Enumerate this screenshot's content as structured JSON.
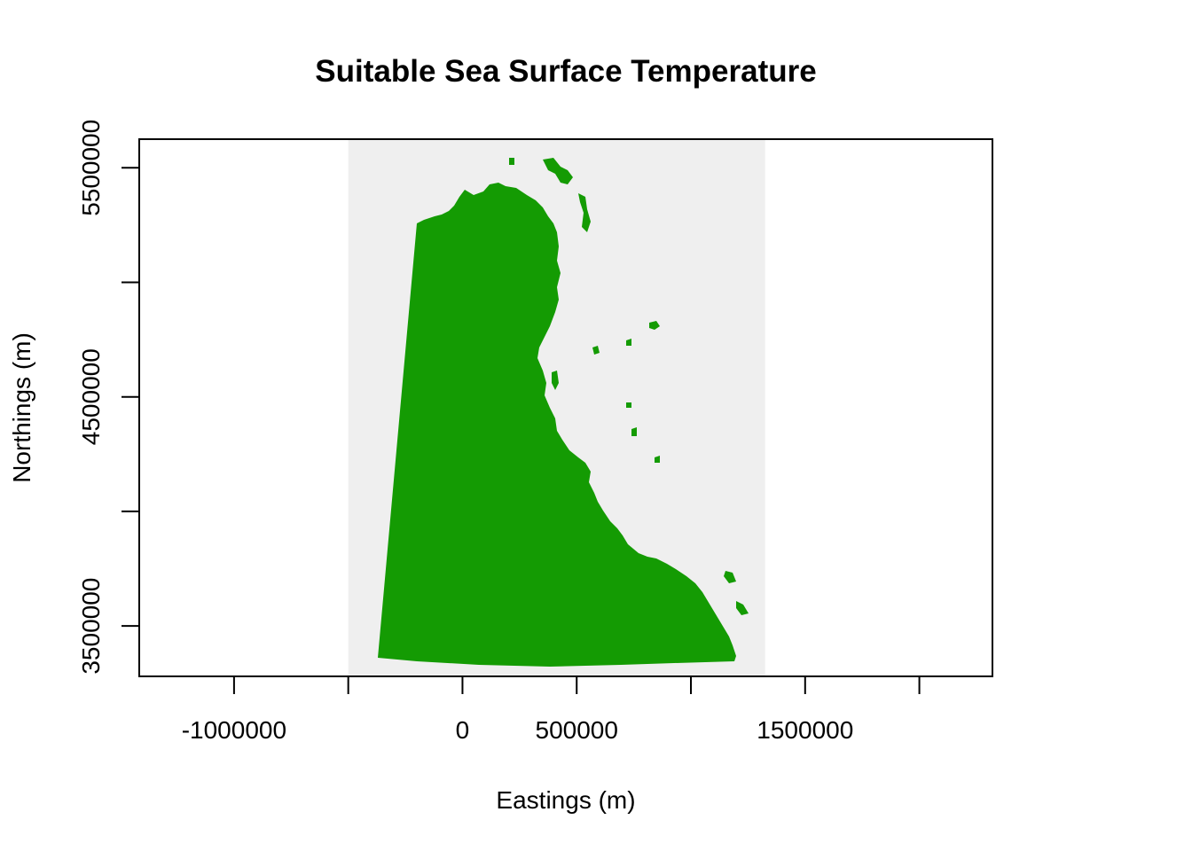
{
  "chart_data": {
    "type": "raster-map",
    "title": "Suitable Sea Surface Temperature",
    "xlabel": "Eastings (m)",
    "ylabel": "Northings (m)",
    "xlim": [
      -1415000,
      2320000
    ],
    "ylim": [
      3280000,
      5625000
    ],
    "x_ticks": [
      {
        "value": -1000000,
        "label": "-1000000"
      },
      {
        "value": -500000,
        "label": ""
      },
      {
        "value": 0,
        "label": "0"
      },
      {
        "value": 500000,
        "label": "500000"
      },
      {
        "value": 1000000,
        "label": ""
      },
      {
        "value": 1500000,
        "label": "1500000"
      },
      {
        "value": 2000000,
        "label": ""
      }
    ],
    "y_ticks": [
      {
        "value": 3500000,
        "label": "3500000"
      },
      {
        "value": 4000000,
        "label": ""
      },
      {
        "value": 4500000,
        "label": "4500000"
      },
      {
        "value": 5000000,
        "label": ""
      },
      {
        "value": 5500000,
        "label": "5500000"
      }
    ],
    "raster_extent": {
      "xmin": -500000,
      "xmax": 1325000,
      "ymin": 3280000,
      "ymax": 5625000
    },
    "colors": {
      "suitable": "#149B03",
      "not_suitable": "#EFEFEF",
      "frame": "#000000"
    },
    "legend": "none",
    "grid": false
  }
}
